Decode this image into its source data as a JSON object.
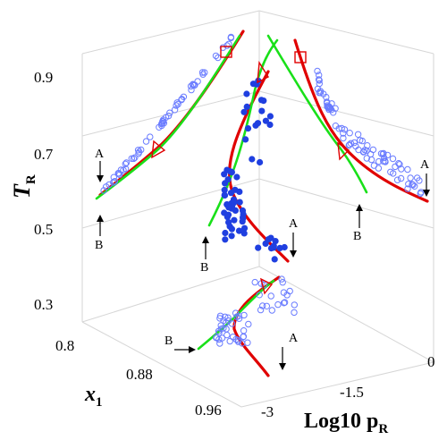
{
  "chart_data": {
    "type": "scatter",
    "projection": "3d",
    "axes": {
      "x": {
        "label": "x",
        "label_sub": "1",
        "ticks": [
          "0.8",
          "0.88",
          "0.96"
        ],
        "range": [
          0.8,
          0.96
        ]
      },
      "y": {
        "label": "Log10 p",
        "label_sub": "R",
        "ticks": [
          "-3",
          "-1.5",
          "0"
        ],
        "range": [
          -3,
          0
        ]
      },
      "z": {
        "label": "T",
        "label_sub": "R",
        "ticks": [
          "0.3",
          "0.5",
          "0.7",
          "0.9"
        ],
        "range": [
          0.3,
          0.9
        ]
      }
    },
    "annotations": [
      "A",
      "B",
      "A",
      "B",
      "A",
      "B",
      "A",
      "B"
    ],
    "series": [
      {
        "style": "red-curve",
        "color": "#e00000"
      },
      {
        "style": "green-curve",
        "color": "#19e019"
      },
      {
        "style": "filled-points",
        "color": "#1f3fe0"
      },
      {
        "style": "open-points",
        "color": "#6a7cff"
      }
    ]
  }
}
